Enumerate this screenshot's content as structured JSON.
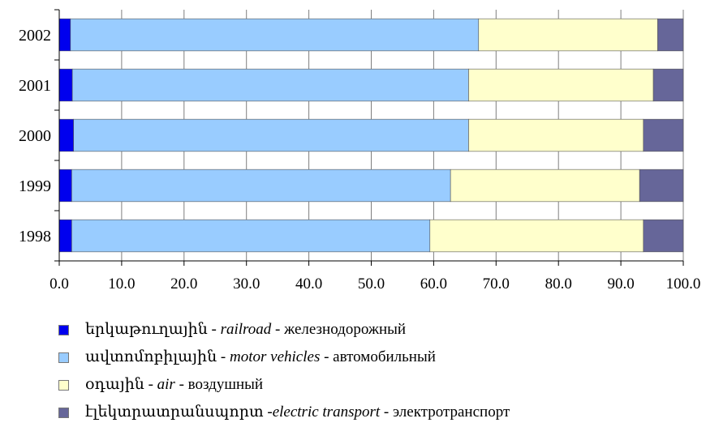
{
  "chart_data": {
    "type": "bar",
    "orientation": "horizontal",
    "stacked": true,
    "categories": [
      "2002",
      "2001",
      "2000",
      "1999",
      "1998"
    ],
    "xlim": [
      0,
      100
    ],
    "x_ticks": [
      "0.0",
      "10.0",
      "20.0",
      "30.0",
      "40.0",
      "50.0",
      "60.0",
      "70.0",
      "80.0",
      "90.0",
      "100.0"
    ],
    "grid": "vertical",
    "legend_position": "bottom",
    "series": [
      {
        "name": "երկաթուղային - railroad - железнодорожный",
        "name_parts": [
          "երկաթուղային - ",
          "railroad",
          " - железнодорожный"
        ],
        "color": "#0000ee",
        "values": [
          1.8,
          2.1,
          2.3,
          2.0,
          2.0
        ]
      },
      {
        "name": "ավտոմոբիլային - motor vehicles - автомобильный",
        "name_parts": [
          "ավտոմոբիլային - ",
          "motor vehicles",
          " - автомобильный"
        ],
        "color": "#99ccff",
        "values": [
          65.4,
          63.5,
          63.3,
          60.7,
          57.4
        ]
      },
      {
        "name": "օդային - air - воздушный",
        "name_parts": [
          "օդային - ",
          "air",
          " - воздушный"
        ],
        "color": "#ffffcc",
        "values": [
          28.7,
          29.6,
          28.0,
          30.3,
          34.2
        ]
      },
      {
        "name": "էլեկտրատրանսպորտ -electric transport - электротранспорт",
        "name_parts": [
          "էլեկտրատրանսպորտ -",
          "electric transport",
          " - электротранспорт"
        ],
        "color": "#666699",
        "values": [
          4.1,
          4.8,
          6.4,
          7.0,
          6.4
        ]
      }
    ]
  }
}
